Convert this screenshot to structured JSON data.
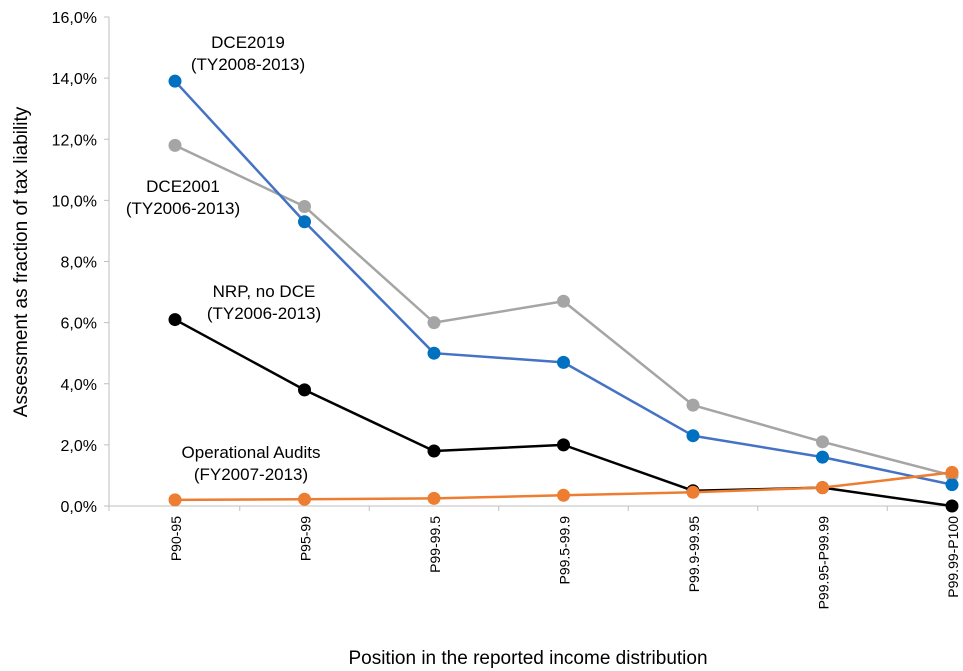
{
  "chart_data": {
    "type": "line",
    "xlabel": "Position in the reported income distribution",
    "ylabel": "Assessment as fraction of tax liability",
    "ylim": [
      0,
      0.16
    ],
    "y_ticks": [
      "0,0%",
      "2,0%",
      "4,0%",
      "6,0%",
      "8,0%",
      "10,0%",
      "12,0%",
      "14,0%",
      "16,0%"
    ],
    "grid": false,
    "legend": "none",
    "categories": [
      "P90-95",
      "P95-99",
      "P99-99.5",
      "P99.5-99.9",
      "P99.9-99.95",
      "P99.95-P99.99",
      "P99.99-P100"
    ],
    "series": [
      {
        "name": "DCE2001",
        "label_lines": [
          "DCE2001",
          "(TY2006-2013)"
        ],
        "color": "#a5a5a5",
        "values": [
          0.118,
          0.098,
          0.06,
          0.067,
          0.033,
          0.021,
          0.01
        ]
      },
      {
        "name": "DCE2019",
        "label_lines": [
          "DCE2019",
          "(TY2008-2013)"
        ],
        "color": "#4472c4",
        "marker": "#0070c0",
        "values": [
          0.139,
          0.093,
          0.05,
          0.047,
          0.023,
          0.016,
          0.007
        ]
      },
      {
        "name": "NRP, no DCE",
        "label_lines": [
          "NRP, no DCE",
          "(TY2006-2013)"
        ],
        "color": "#000000",
        "values": [
          0.061,
          0.038,
          0.018,
          0.02,
          0.005,
          0.006,
          0.0
        ]
      },
      {
        "name": "Operational Audits",
        "label_lines": [
          "Operational Audits",
          "(FY2007-2013)"
        ],
        "color": "#ed7d31",
        "values": [
          0.002,
          0.0022,
          0.0025,
          0.0035,
          0.0045,
          0.006,
          0.011
        ]
      }
    ]
  }
}
